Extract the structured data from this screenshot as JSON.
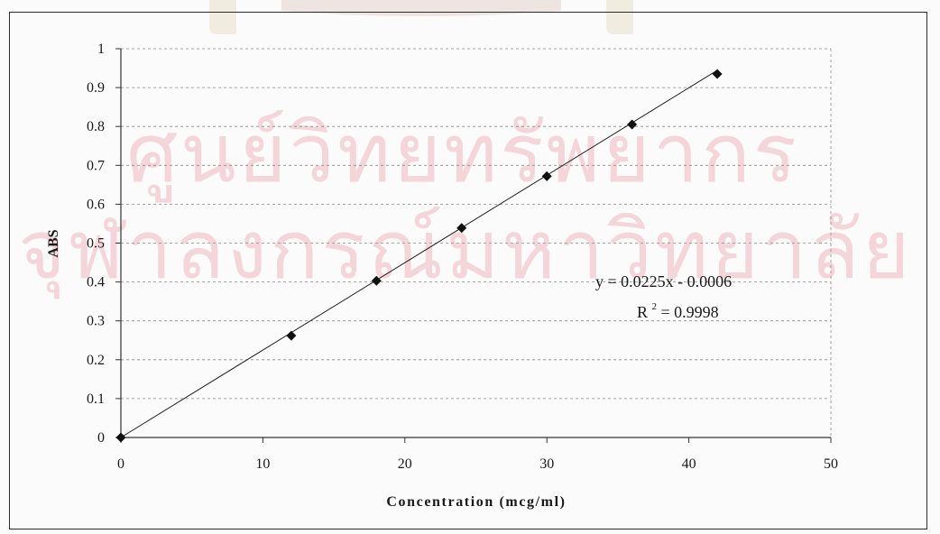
{
  "watermark": {
    "line1": "ศูนย์วิทยทรัพยากร",
    "line2": "จุฬาลงกรณ์มหาวิทยาลัย"
  },
  "colors": {
    "axis": "#333333",
    "grid": "#8a8a8a",
    "trendline": "#1f1f1f",
    "marker": "#111111",
    "watermark": "#f3cfd5"
  },
  "chart_data": {
    "type": "scatter",
    "title": "",
    "xlabel": "Concentration (mcg/ml)",
    "ylabel": "ABS",
    "xlim": [
      0,
      50
    ],
    "ylim": [
      0,
      1
    ],
    "xticks": [
      0,
      10,
      20,
      30,
      40,
      50
    ],
    "yticks": [
      0,
      0.1,
      0.2,
      0.3,
      0.4,
      0.5,
      0.6,
      0.7,
      0.8,
      0.9,
      1
    ],
    "ytick_labels": [
      "0",
      "0.1",
      "0.2",
      "0.3",
      "0.4",
      "0.5",
      "0.6",
      "0.7",
      "0.8",
      "0.9",
      "1"
    ],
    "grid": "dashed horizontal",
    "marker": "diamond",
    "x": [
      0,
      12,
      18,
      24,
      30,
      36,
      42
    ],
    "y": [
      0,
      0.262,
      0.403,
      0.539,
      0.672,
      0.805,
      0.935
    ],
    "trendline": {
      "slope": 0.0225,
      "intercept": -0.0006,
      "equation": "y = 0.0225x - 0.0006",
      "r2_prefix": "R",
      "r2_exponent": "2",
      "r2_value": " = 0.9998"
    }
  }
}
